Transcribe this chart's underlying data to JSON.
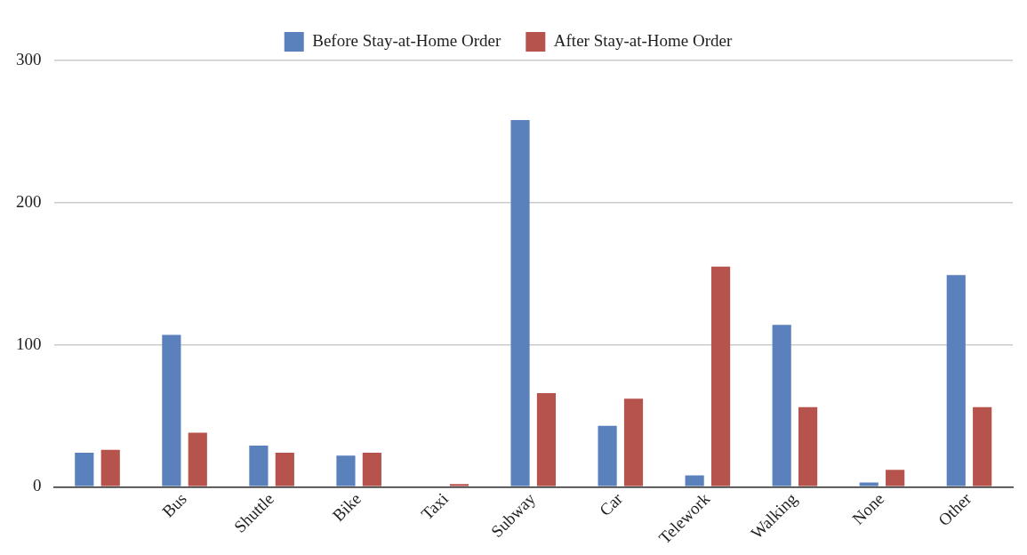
{
  "chart_data": {
    "type": "bar",
    "categories": [
      null,
      "Bus",
      "Shuttle",
      "Bike",
      "Taxi",
      "Subway",
      "Car",
      "Telework",
      "Walking",
      "None",
      "Other"
    ],
    "series": [
      {
        "name": "Before Stay-at-Home Order",
        "color": "#5a81bc",
        "values": [
          24,
          107,
          29,
          22,
          0,
          258,
          43,
          8,
          114,
          3,
          149
        ]
      },
      {
        "name": "After Stay-at-Home Order",
        "color": "#b5534c",
        "values": [
          26,
          38,
          24,
          24,
          2,
          66,
          62,
          155,
          56,
          12,
          56
        ]
      }
    ],
    "ylim": [
      0,
      300
    ],
    "yticks": [
      0,
      100,
      200,
      300
    ],
    "grid": "y",
    "legend": "top"
  }
}
